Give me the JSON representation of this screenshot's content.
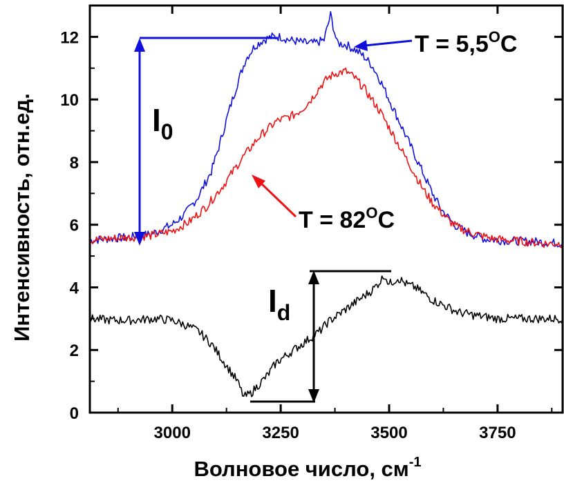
{
  "chart_data": {
    "type": "line",
    "title": "",
    "xlabel": "Волновое число, см",
    "xlabel_sup": "-1",
    "ylabel": "Интенсивность, отн.ед.",
    "xlim": [
      2810,
      3900
    ],
    "ylim": [
      0,
      13
    ],
    "x_ticks": [
      3000,
      3250,
      3500,
      3750
    ],
    "x_tick_labels": [
      "3000",
      "3250",
      "3500",
      "3750"
    ],
    "y_ticks": [
      0,
      2,
      4,
      6,
      8,
      10,
      12
    ],
    "y_tick_labels": [
      "0",
      "2",
      "4",
      "6",
      "8",
      "10",
      "12"
    ],
    "grid": false,
    "legend": "none",
    "series": [
      {
        "color": "#1010dd",
        "x": [
          2810,
          2850,
          2900,
          2950,
          3000,
          3030,
          3060,
          3090,
          3110,
          3130,
          3150,
          3170,
          3190,
          3210,
          3230,
          3250,
          3270,
          3290,
          3310,
          3330,
          3350,
          3365,
          3380,
          3400,
          3420,
          3440,
          3460,
          3480,
          3500,
          3520,
          3540,
          3560,
          3580,
          3600,
          3620,
          3650,
          3680,
          3720,
          3760,
          3800,
          3850,
          3900
        ],
        "y": [
          5.5,
          5.55,
          5.6,
          5.7,
          6.0,
          6.35,
          6.9,
          7.7,
          8.6,
          9.6,
          10.5,
          11.3,
          11.7,
          11.9,
          12.0,
          12.0,
          11.9,
          11.85,
          11.8,
          11.8,
          11.9,
          12.7,
          11.8,
          11.75,
          11.6,
          11.4,
          11.1,
          10.6,
          10.0,
          9.4,
          8.8,
          8.2,
          7.6,
          7.0,
          6.5,
          6.0,
          5.75,
          5.55,
          5.5,
          5.48,
          5.45,
          5.4
        ]
      },
      {
        "color": "#ee1111",
        "x": [
          2810,
          2850,
          2900,
          2950,
          3000,
          3040,
          3080,
          3120,
          3160,
          3200,
          3240,
          3280,
          3300,
          3320,
          3340,
          3360,
          3380,
          3400,
          3420,
          3440,
          3460,
          3480,
          3500,
          3520,
          3540,
          3560,
          3580,
          3600,
          3620,
          3640,
          3660,
          3680,
          3700,
          3740,
          3780,
          3820,
          3860,
          3900
        ],
        "y": [
          5.5,
          5.55,
          5.6,
          5.65,
          5.8,
          6.1,
          6.6,
          7.3,
          8.1,
          8.8,
          9.3,
          9.5,
          9.7,
          10.0,
          10.4,
          10.7,
          10.85,
          10.9,
          10.7,
          10.4,
          10.0,
          9.6,
          9.1,
          8.6,
          8.1,
          7.6,
          7.1,
          6.7,
          6.4,
          6.1,
          5.9,
          5.8,
          5.7,
          5.55,
          5.5,
          5.45,
          5.4,
          5.4
        ]
      },
      {
        "color": "#000000",
        "x": [
          2810,
          2860,
          2910,
          2960,
          3000,
          3030,
          3060,
          3090,
          3110,
          3130,
          3150,
          3165,
          3180,
          3200,
          3220,
          3240,
          3260,
          3280,
          3300,
          3320,
          3340,
          3360,
          3380,
          3400,
          3420,
          3440,
          3460,
          3480,
          3490,
          3500,
          3520,
          3540,
          3560,
          3580,
          3600,
          3630,
          3660,
          3700,
          3750,
          3800,
          3850,
          3900
        ],
        "y": [
          3.0,
          2.95,
          2.95,
          3.0,
          2.95,
          2.8,
          2.6,
          2.2,
          1.8,
          1.4,
          1.0,
          0.5,
          0.6,
          0.9,
          1.2,
          1.6,
          1.8,
          2.0,
          2.2,
          2.4,
          2.6,
          2.9,
          3.1,
          3.3,
          3.5,
          3.7,
          3.9,
          4.2,
          4.4,
          4.1,
          4.3,
          4.1,
          4.0,
          3.8,
          3.6,
          3.4,
          3.2,
          3.1,
          3.0,
          3.0,
          3.0,
          3.0
        ]
      }
    ],
    "annotations": {
      "label_55": "T = 5,5",
      "label_82": "T = 82",
      "degree_sup": "O",
      "degree_c": "C",
      "i0_main": "I",
      "i0_sub": "0",
      "id_main": "I",
      "id_sub": "d"
    }
  }
}
